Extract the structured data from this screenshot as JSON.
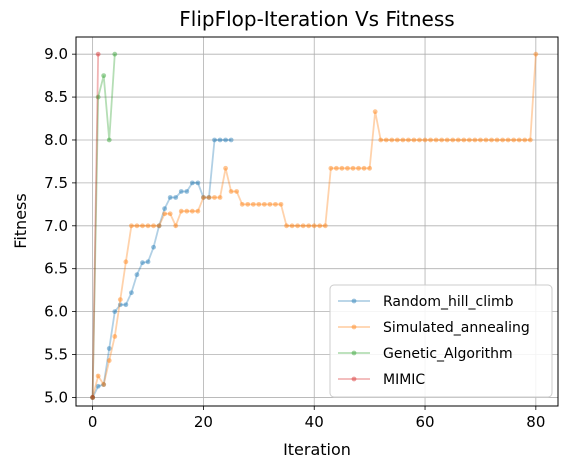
{
  "chart_data": {
    "type": "line",
    "title": "FlipFlop-Iteration Vs Fitness",
    "xlabel": "Iteration",
    "ylabel": "Fitness",
    "xlim": [
      -3,
      84
    ],
    "ylim": [
      4.9,
      9.2
    ],
    "xticks": [
      0,
      20,
      40,
      60,
      80
    ],
    "xtick_labels": [
      "0",
      "20",
      "40",
      "60",
      "80"
    ],
    "yticks": [
      5.0,
      5.5,
      6.0,
      6.5,
      7.0,
      7.5,
      8.0,
      8.5,
      9.0
    ],
    "ytick_labels": [
      "5.0",
      "5.5",
      "6.0",
      "6.5",
      "7.0",
      "7.5",
      "8.0",
      "8.5",
      "9.0"
    ],
    "grid": true,
    "legend_position": "lower-right",
    "series": [
      {
        "name": "Random_hill_climb",
        "color": "#1f77b4",
        "x": [
          0,
          1,
          2,
          3,
          4,
          5,
          6,
          7,
          8,
          9,
          10,
          11,
          12,
          13,
          14,
          15,
          16,
          17,
          18,
          19,
          20,
          21,
          22,
          23,
          24,
          25
        ],
        "y": [
          5.0,
          5.13,
          5.15,
          5.57,
          6.0,
          6.08,
          6.08,
          6.22,
          6.43,
          6.57,
          6.58,
          6.75,
          7.0,
          7.2,
          7.33,
          7.33,
          7.4,
          7.4,
          7.5,
          7.5,
          7.33,
          7.33,
          8.0,
          8.0,
          8.0,
          8.0
        ]
      },
      {
        "name": "Simulated_annealing",
        "color": "#ff7f0e",
        "x": [
          0,
          1,
          2,
          3,
          4,
          5,
          6,
          7,
          8,
          9,
          10,
          11,
          12,
          13,
          14,
          15,
          16,
          17,
          18,
          19,
          20,
          21,
          22,
          23,
          24,
          25,
          26,
          27,
          28,
          29,
          30,
          31,
          32,
          33,
          34,
          35,
          36,
          37,
          38,
          39,
          40,
          41,
          42,
          43,
          44,
          45,
          46,
          47,
          48,
          49,
          50,
          51,
          52,
          53,
          54,
          55,
          56,
          57,
          58,
          59,
          60,
          61,
          62,
          63,
          64,
          65,
          66,
          67,
          68,
          69,
          70,
          71,
          72,
          73,
          74,
          75,
          76,
          77,
          78,
          79,
          80
        ],
        "y": [
          5.0,
          5.25,
          5.15,
          5.43,
          5.71,
          6.14,
          6.58,
          7.0,
          7.0,
          7.0,
          7.0,
          7.0,
          7.0,
          7.14,
          7.14,
          7.0,
          7.17,
          7.17,
          7.17,
          7.17,
          7.33,
          7.33,
          7.33,
          7.33,
          7.67,
          7.4,
          7.4,
          7.25,
          7.25,
          7.25,
          7.25,
          7.25,
          7.25,
          7.25,
          7.25,
          7.0,
          7.0,
          7.0,
          7.0,
          7.0,
          7.0,
          7.0,
          7.0,
          7.67,
          7.67,
          7.67,
          7.67,
          7.67,
          7.67,
          7.67,
          7.67,
          8.33,
          8.0,
          8.0,
          8.0,
          8.0,
          8.0,
          8.0,
          8.0,
          8.0,
          8.0,
          8.0,
          8.0,
          8.0,
          8.0,
          8.0,
          8.0,
          8.0,
          8.0,
          8.0,
          8.0,
          8.0,
          8.0,
          8.0,
          8.0,
          8.0,
          8.0,
          8.0,
          8.0,
          8.0,
          9.0
        ]
      },
      {
        "name": "Genetic_Algorithm",
        "color": "#2ca02c",
        "x": [
          0,
          1,
          2,
          3,
          4
        ],
        "y": [
          5.0,
          8.5,
          8.75,
          8.0,
          9.0
        ]
      },
      {
        "name": "MIMIC",
        "color": "#d62728",
        "x": [
          0,
          1
        ],
        "y": [
          5.0,
          9.0
        ]
      }
    ]
  }
}
